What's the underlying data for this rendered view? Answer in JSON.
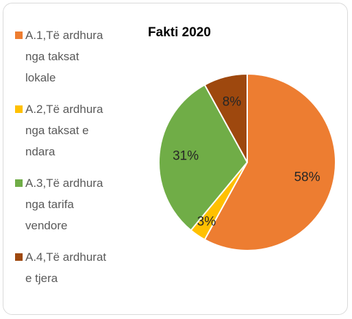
{
  "chart_data": {
    "type": "pie",
    "title": "Fakti 2020",
    "categories": [
      "A.1,Të ardhura nga taksat lokale",
      "A.2,Të ardhura nga taksat e ndara",
      "A.3,Të ardhura nga tarifa vendore",
      "A.4,Të ardhurat e tjera"
    ],
    "values": [
      58,
      3,
      31,
      8
    ],
    "value_labels": [
      "58%",
      "3%",
      "31%",
      "8%"
    ],
    "colors": [
      "#ed7d31",
      "#ffc000",
      "#70ad47",
      "#9e480e"
    ],
    "legend": "left"
  }
}
